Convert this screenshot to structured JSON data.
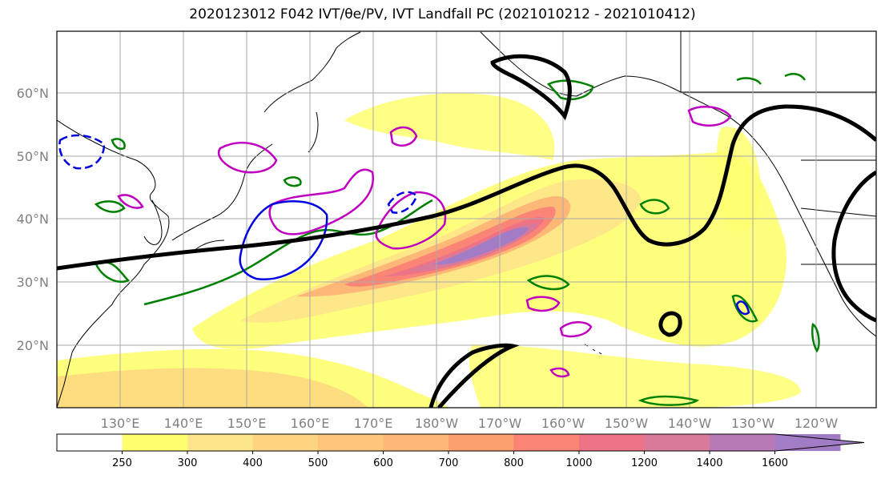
{
  "title": "2020123012 F042 IVT/θe/PV, IVT Landfall PC (2021010212 - 2021010412)",
  "lat_labels": [
    "60°N",
    "50°N",
    "40°N",
    "30°N",
    "20°N"
  ],
  "lon_labels": [
    "130°E",
    "140°E",
    "150°E",
    "160°E",
    "170°E",
    "180°W",
    "170°W",
    "160°W",
    "150°W",
    "140°W",
    "130°W",
    "120°W"
  ],
  "colorbar": {
    "ticks": [
      "250",
      "300",
      "400",
      "500",
      "600",
      "700",
      "800",
      "1000",
      "1200",
      "1400",
      "1600"
    ],
    "colors": [
      "#ffffff",
      "#ffff70",
      "#fde68a",
      "#fdd480",
      "#fdc67a",
      "#fdb877",
      "#fda070",
      "#fa8577",
      "#ee7386",
      "#d97a9a",
      "#b77ab4",
      "#a37cc6"
    ],
    "extend": "max"
  },
  "colors": {
    "land_outline": "#000000",
    "ivt_low": "#ffff70",
    "ivt_high": "#a37cc6",
    "theta_e_contour": "#000000",
    "pv_green": "#008000",
    "pv_magenta": "#c000c0",
    "pv_blue": "#0000e0"
  }
}
